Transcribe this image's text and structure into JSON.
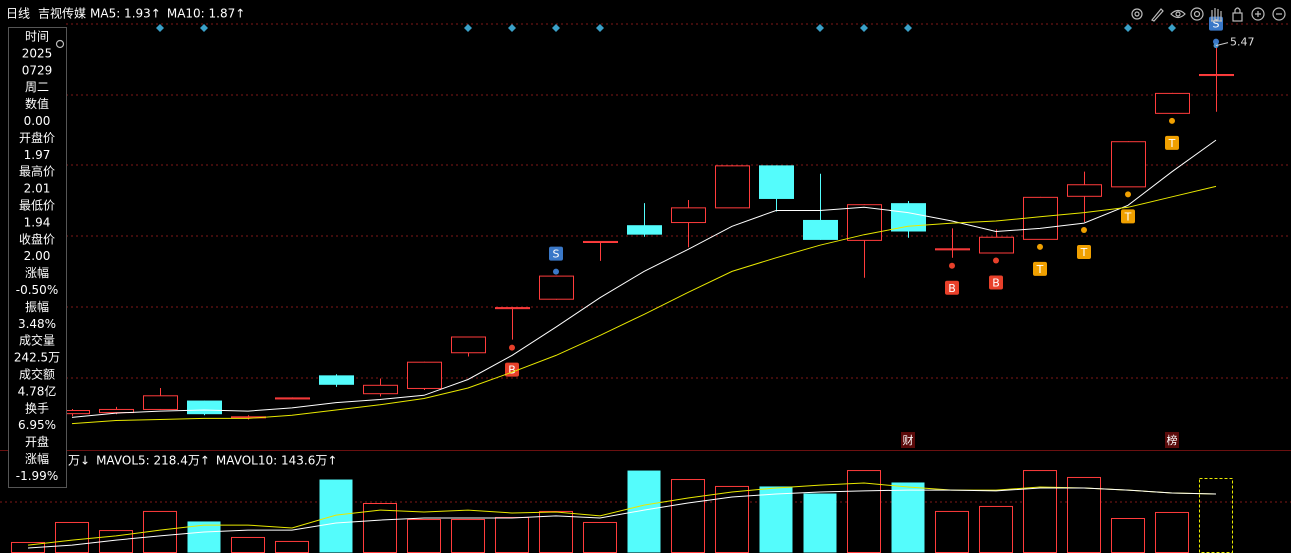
{
  "header": {
    "period": "日线",
    "stock": "吉视传媒"
  },
  "info_panel": {
    "lines": [
      {
        "text": "时间"
      },
      {
        "text": "2025"
      },
      {
        "text": "0729"
      },
      {
        "text": "周二"
      },
      {
        "text": "数值"
      },
      {
        "text": "0.00"
      },
      {
        "text": "开盘价"
      },
      {
        "text": "1.97",
        "color": "#3cdc3c"
      },
      {
        "text": "最高价"
      },
      {
        "text": "2.01",
        "color": "#3cdc3c"
      },
      {
        "text": "最低价"
      },
      {
        "text": "1.94",
        "color": "#3cdc3c"
      },
      {
        "text": "收盘价"
      },
      {
        "text": "2.00",
        "color": "#3cdc3c"
      },
      {
        "text": "涨幅"
      },
      {
        "text": "-0.50%",
        "color": "#3cdc3c"
      },
      {
        "text": "振幅"
      },
      {
        "text": "3.48%",
        "color": "#54fcfc"
      },
      {
        "text": "成交量"
      },
      {
        "text": "242.5万",
        "color": "#54fcfc"
      },
      {
        "text": "成交额"
      },
      {
        "text": "4.78亿",
        "color": "#54fcfc"
      },
      {
        "text": "换手"
      },
      {
        "text": "6.95%",
        "color": "#54fcfc"
      },
      {
        "text": "开盘"
      },
      {
        "text": "涨幅"
      },
      {
        "text": "-1.99%",
        "color": "#3cdc3c"
      }
    ]
  },
  "chart_data": [
    {
      "type": "candlestick",
      "up_color": "#ff3c3c",
      "down_color": "#54fcfc",
      "legend": [
        {
          "text": "MA5: 1.93",
          "arrow": "↑",
          "color": "#ffffff"
        },
        {
          "text": "MA10: 1.87",
          "arrow": "↑",
          "color": "#e8e800"
        }
      ],
      "candles": [
        null,
        {
          "open": 1.97,
          "high": 2.01,
          "low": 1.94,
          "close": 2.0
        },
        {
          "open": 1.98,
          "high": 2.03,
          "low": 1.96,
          "close": 2.01
        },
        {
          "open": 2.01,
          "high": 2.21,
          "low": 2.0,
          "close": 2.14
        },
        {
          "open": 2.09,
          "high": 2.09,
          "low": 1.95,
          "close": 1.96
        },
        {
          "open": 1.93,
          "high": 1.95,
          "low": 1.91,
          "close": 1.94
        },
        {
          "open": 2.11,
          "high": 2.12,
          "low": 2.11,
          "close": 2.12
        },
        {
          "open": 2.33,
          "high": 2.34,
          "low": 2.22,
          "close": 2.24
        },
        {
          "open": 2.16,
          "high": 2.3,
          "low": 2.13,
          "close": 2.24
        },
        {
          "open": 2.21,
          "high": 2.46,
          "low": 2.19,
          "close": 2.46
        },
        {
          "open": 2.55,
          "high": 2.7,
          "low": 2.51,
          "close": 2.7
        },
        {
          "open": 2.97,
          "high": 2.98,
          "low": 2.67,
          "close": 2.98,
          "signal": "B"
        },
        {
          "open": 3.06,
          "high": 3.28,
          "low": 3.05,
          "close": 3.28,
          "signal": "S"
        },
        {
          "open": 3.6,
          "high": 3.61,
          "low": 3.42,
          "close": 3.61
        },
        {
          "open": 3.76,
          "high": 3.97,
          "low": 3.65,
          "close": 3.67
        },
        {
          "open": 3.79,
          "high": 4.0,
          "low": 3.55,
          "close": 3.93
        },
        {
          "open": 3.93,
          "high": 4.33,
          "low": 3.93,
          "close": 4.33
        },
        {
          "open": 4.33,
          "high": 4.33,
          "low": 3.89,
          "close": 4.01
        },
        {
          "open": 3.81,
          "high": 4.25,
          "low": 3.62,
          "close": 3.62
        },
        {
          "open": 3.62,
          "high": 3.96,
          "low": 3.26,
          "close": 3.96
        },
        {
          "open": 3.97,
          "high": 3.99,
          "low": 3.64,
          "close": 3.7,
          "note": "财"
        },
        {
          "open": 3.53,
          "high": 3.73,
          "low": 3.45,
          "close": 3.54,
          "signal": "B"
        },
        {
          "open": 3.5,
          "high": 3.72,
          "low": 3.5,
          "close": 3.65,
          "signal": "B"
        },
        {
          "open": 3.63,
          "high": 4.03,
          "low": 3.63,
          "close": 4.03,
          "signal": "T"
        },
        {
          "open": 4.04,
          "high": 4.27,
          "low": 3.79,
          "close": 4.15,
          "signal": "T"
        },
        {
          "open": 4.13,
          "high": 4.56,
          "low": 4.13,
          "close": 4.56,
          "signal": "T"
        },
        {
          "open": 4.83,
          "high": 5.02,
          "low": 4.83,
          "close": 5.02,
          "signal": "T",
          "note": "榜"
        },
        {
          "open": 5.19,
          "high": 5.47,
          "low": 4.84,
          "close": 5.2,
          "signal": "S"
        }
      ],
      "series": [
        {
          "color": "#ffffff",
          "values": [
            null,
            1.93,
            1.97,
            1.99,
            2.0,
            1.99,
            2.02,
            2.07,
            2.1,
            2.14,
            2.29,
            2.52,
            2.79,
            3.07,
            3.32,
            3.53,
            3.75,
            3.9,
            3.9,
            3.93,
            3.88,
            3.8,
            3.7,
            3.73,
            3.78,
            3.95,
            4.27,
            4.57
          ]
        },
        {
          "color": "#e8e800",
          "values": [
            null,
            1.87,
            1.9,
            1.91,
            1.92,
            1.92,
            1.95,
            2.0,
            2.05,
            2.11,
            2.21,
            2.36,
            2.52,
            2.71,
            2.91,
            3.12,
            3.32,
            3.45,
            3.57,
            3.67,
            3.75,
            3.78,
            3.8,
            3.84,
            3.88,
            3.93,
            4.03,
            4.13
          ]
        }
      ]
    },
    {
      "type": "bar",
      "current_color": "#e8e800",
      "legend": [
        {
          "text": "万",
          "arrow": "↓",
          "color": "#e8e800"
        },
        {
          "text": "MAVOL5: 218.4万",
          "arrow": "↑",
          "color": "#e8e800"
        },
        {
          "text": "MAVOL10: 143.6万",
          "arrow": "↑",
          "color": "#ffffff"
        }
      ],
      "values": [
        86,
        242,
        179,
        328,
        250,
        125,
        94,
        577,
        390,
        265,
        265,
        281,
        328,
        242,
        647,
        577,
        523,
        523,
        468,
        647,
        554,
        328,
        367,
        647,
        593,
        273,
        320,
        585
      ],
      "series": [
        {
          "color": "#e8e800",
          "values": [
            62,
            101,
            133,
            179,
            218,
            218,
            195,
            296,
            335,
            320,
            335,
            312,
            320,
            289,
            374,
            429,
            476,
            507,
            530,
            546,
            515,
            491,
            491,
            515,
            507,
            491,
            468,
            460
          ]
        },
        {
          "color": "#ffffff",
          "values": [
            39,
            62,
            101,
            133,
            164,
            179,
            179,
            234,
            257,
            273,
            273,
            273,
            289,
            273,
            335,
            390,
            437,
            460,
            476,
            484,
            491,
            491,
            484,
            507,
            507,
            491,
            468,
            460
          ]
        }
      ]
    }
  ]
}
